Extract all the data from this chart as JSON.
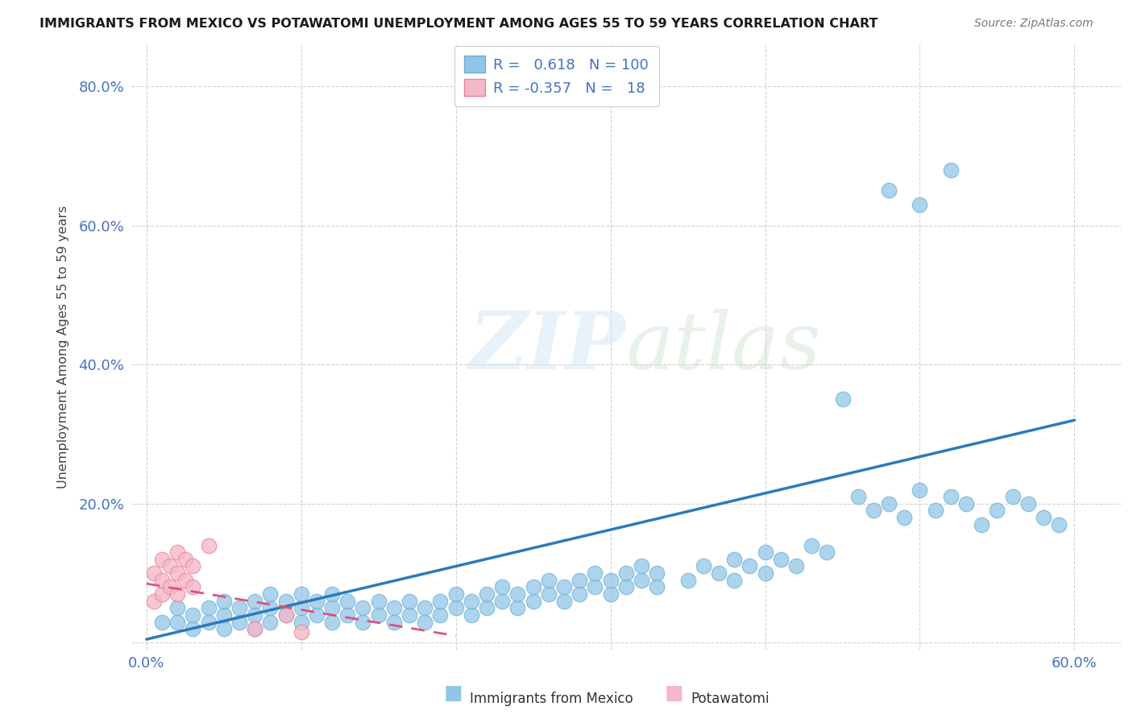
{
  "title": "IMMIGRANTS FROM MEXICO VS POTAWATOMI UNEMPLOYMENT AMONG AGES 55 TO 59 YEARS CORRELATION CHART",
  "source": "Source: ZipAtlas.com",
  "ylabel": "Unemployment Among Ages 55 to 59 years",
  "xlim": [
    -0.01,
    0.63
  ],
  "ylim": [
    -0.01,
    0.86
  ],
  "xtick_positions": [
    0.0,
    0.1,
    0.2,
    0.3,
    0.4,
    0.5,
    0.6
  ],
  "xticklabels": [
    "0.0%",
    "",
    "",
    "",
    "",
    "",
    "60.0%"
  ],
  "ytick_positions": [
    0.0,
    0.2,
    0.4,
    0.6,
    0.8
  ],
  "yticklabels": [
    "",
    "20.0%",
    "40.0%",
    "60.0%",
    "80.0%"
  ],
  "blue_color": "#92C5E8",
  "blue_edge": "#6AAFD6",
  "pink_color": "#F4B8C8",
  "pink_edge": "#E8839A",
  "line_blue": "#2B7BBA",
  "line_pink": "#E05080",
  "legend_R_blue": "0.618",
  "legend_N_blue": "100",
  "legend_R_pink": "-0.357",
  "legend_N_pink": "18",
  "blue_line_x0": 0.0,
  "blue_line_y0": 0.005,
  "blue_line_x1": 0.6,
  "blue_line_y1": 0.32,
  "pink_line_x0": 0.0,
  "pink_line_y0": 0.085,
  "pink_line_x1": 0.2,
  "pink_line_y1": 0.01,
  "blue_scatter_x": [
    0.01,
    0.02,
    0.02,
    0.03,
    0.03,
    0.04,
    0.04,
    0.05,
    0.05,
    0.05,
    0.06,
    0.06,
    0.07,
    0.07,
    0.07,
    0.08,
    0.08,
    0.08,
    0.09,
    0.09,
    0.1,
    0.1,
    0.1,
    0.11,
    0.11,
    0.12,
    0.12,
    0.12,
    0.13,
    0.13,
    0.14,
    0.14,
    0.15,
    0.15,
    0.16,
    0.16,
    0.17,
    0.17,
    0.18,
    0.18,
    0.19,
    0.19,
    0.2,
    0.2,
    0.21,
    0.21,
    0.22,
    0.22,
    0.23,
    0.23,
    0.24,
    0.24,
    0.25,
    0.25,
    0.26,
    0.26,
    0.27,
    0.27,
    0.28,
    0.28,
    0.29,
    0.29,
    0.3,
    0.3,
    0.31,
    0.31,
    0.32,
    0.32,
    0.33,
    0.33,
    0.35,
    0.36,
    0.37,
    0.38,
    0.38,
    0.39,
    0.4,
    0.4,
    0.41,
    0.42,
    0.43,
    0.44,
    0.45,
    0.46,
    0.47,
    0.48,
    0.49,
    0.5,
    0.51,
    0.52,
    0.53,
    0.54,
    0.55,
    0.56,
    0.57,
    0.58,
    0.59,
    0.48,
    0.5,
    0.52
  ],
  "blue_scatter_y": [
    0.03,
    0.03,
    0.05,
    0.02,
    0.04,
    0.03,
    0.05,
    0.02,
    0.04,
    0.06,
    0.03,
    0.05,
    0.02,
    0.04,
    0.06,
    0.03,
    0.05,
    0.07,
    0.04,
    0.06,
    0.03,
    0.05,
    0.07,
    0.04,
    0.06,
    0.03,
    0.05,
    0.07,
    0.04,
    0.06,
    0.03,
    0.05,
    0.04,
    0.06,
    0.03,
    0.05,
    0.04,
    0.06,
    0.03,
    0.05,
    0.04,
    0.06,
    0.05,
    0.07,
    0.04,
    0.06,
    0.05,
    0.07,
    0.06,
    0.08,
    0.05,
    0.07,
    0.06,
    0.08,
    0.07,
    0.09,
    0.06,
    0.08,
    0.07,
    0.09,
    0.08,
    0.1,
    0.07,
    0.09,
    0.08,
    0.1,
    0.09,
    0.11,
    0.08,
    0.1,
    0.09,
    0.11,
    0.1,
    0.09,
    0.12,
    0.11,
    0.13,
    0.1,
    0.12,
    0.11,
    0.14,
    0.13,
    0.35,
    0.21,
    0.19,
    0.2,
    0.18,
    0.22,
    0.19,
    0.21,
    0.2,
    0.17,
    0.19,
    0.21,
    0.2,
    0.18,
    0.17,
    0.65,
    0.63,
    0.68
  ],
  "pink_scatter_x": [
    0.005,
    0.005,
    0.01,
    0.01,
    0.01,
    0.015,
    0.015,
    0.02,
    0.02,
    0.02,
    0.025,
    0.025,
    0.03,
    0.03,
    0.04,
    0.07,
    0.09,
    0.1
  ],
  "pink_scatter_y": [
    0.06,
    0.1,
    0.07,
    0.09,
    0.12,
    0.08,
    0.11,
    0.07,
    0.1,
    0.13,
    0.09,
    0.12,
    0.08,
    0.11,
    0.14,
    0.02,
    0.04,
    0.015
  ]
}
